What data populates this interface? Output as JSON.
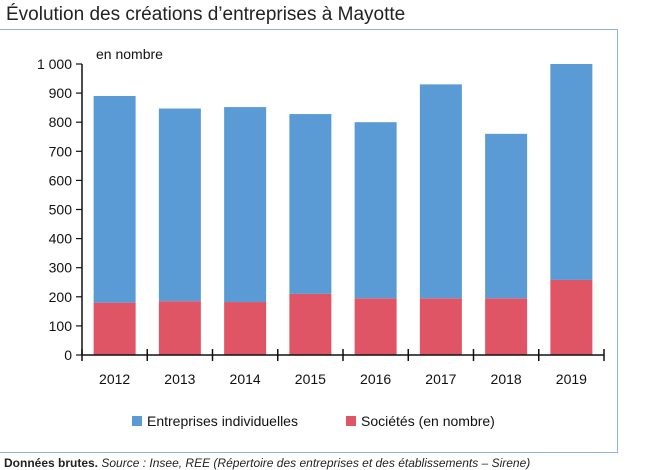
{
  "title": "Évolution des créations d’entreprises à Mayotte",
  "footnote": {
    "strong": "Données brutes.",
    "em": "Source : Insee, REE (Répertoire des entreprises et des établissements – Sirene)"
  },
  "colors": {
    "individuelles": "#5b9bd5",
    "societes": "#e05565",
    "axis": "#111111",
    "frame": "#8fb4d8"
  },
  "chart_data": {
    "type": "bar",
    "stacked": true,
    "unit_label": "en nombre",
    "categories": [
      "2012",
      "2013",
      "2014",
      "2015",
      "2016",
      "2017",
      "2018",
      "2019"
    ],
    "series": [
      {
        "name": "Sociétés (en nombre)",
        "values": [
          180,
          185,
          182,
          210,
          195,
          195,
          195,
          258
        ]
      },
      {
        "name": "Entreprises individuelles",
        "values": [
          710,
          662,
          670,
          618,
          605,
          735,
          565,
          742
        ]
      }
    ],
    "ylim": [
      0,
      1000
    ],
    "yticks": [
      0,
      100,
      200,
      300,
      400,
      500,
      600,
      700,
      800,
      900,
      1000
    ],
    "ytick_labels": [
      "0",
      "100",
      "200",
      "300",
      "400",
      "500",
      "600",
      "700",
      "800",
      "900",
      "1 000"
    ],
    "legend": {
      "placement": "bottom",
      "items": [
        "Entreprises individuelles",
        "Sociétés (en nombre)"
      ]
    },
    "grid": false
  }
}
